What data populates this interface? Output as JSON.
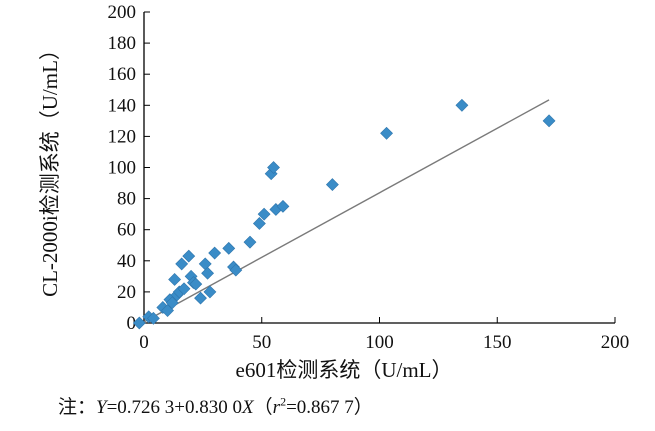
{
  "chart_data": {
    "type": "scatter",
    "xlabel": "e601检测系统（U/mL）",
    "ylabel": "CL-2000i检测系统（U/mL）",
    "xlim": [
      0,
      200
    ],
    "ylim": [
      0,
      200
    ],
    "x_ticks": [
      0,
      50,
      100,
      150,
      200
    ],
    "y_ticks": [
      0,
      20,
      40,
      60,
      80,
      100,
      120,
      140,
      160,
      180,
      200
    ],
    "grid": false,
    "marker_color": "#3a8cc7",
    "line_color": "#7a7a7a",
    "regression": {
      "intercept": 0.7263,
      "slope": 0.83,
      "x_range": [
        -2,
        172
      ]
    },
    "series": [
      {
        "points": [
          [
            -2,
            0
          ],
          [
            2,
            4
          ],
          [
            4,
            3
          ],
          [
            8,
            10
          ],
          [
            10,
            8
          ],
          [
            11,
            15
          ],
          [
            12,
            13
          ],
          [
            13,
            28
          ],
          [
            14,
            18
          ],
          [
            15,
            20
          ],
          [
            16,
            38
          ],
          [
            17,
            22
          ],
          [
            19,
            43
          ],
          [
            20,
            30
          ],
          [
            21,
            26
          ],
          [
            22,
            25
          ],
          [
            24,
            16
          ],
          [
            26,
            38
          ],
          [
            27,
            32
          ],
          [
            28,
            20
          ],
          [
            30,
            45
          ],
          [
            36,
            48
          ],
          [
            38,
            36
          ],
          [
            39,
            34
          ],
          [
            45,
            52
          ],
          [
            49,
            64
          ],
          [
            51,
            70
          ],
          [
            54,
            96
          ],
          [
            55,
            100
          ],
          [
            56,
            73
          ],
          [
            59,
            75
          ],
          [
            80,
            89
          ],
          [
            103,
            122
          ],
          [
            135,
            140
          ],
          [
            172,
            130
          ]
        ]
      }
    ]
  },
  "note": {
    "prefix": "注：",
    "y_var": "Y",
    "equation": "=0.726 3+0.830 0",
    "x_var": "X",
    "paren_open": "（",
    "r_var": "r",
    "r_exp": "2",
    "r_value": "=0.867 7",
    "paren_close": "）"
  }
}
